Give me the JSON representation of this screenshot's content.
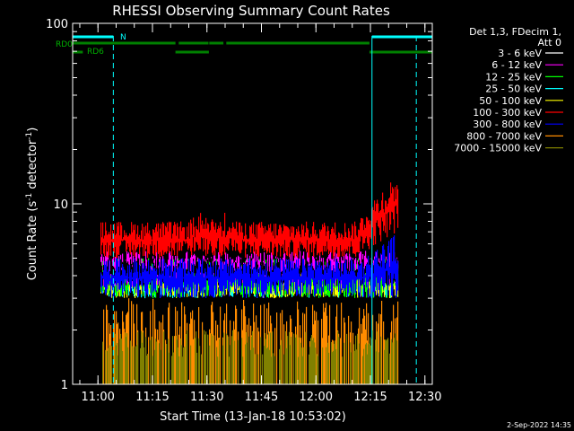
{
  "chart_data": {
    "type": "line",
    "title": "RHESSI Observing Summary Count Rates",
    "xlabel": "Start Time (13-Jan-18 10:53:02)",
    "ylabel_main": "Count Rate (s",
    "ylabel_sup1": "-1",
    "ylabel_mid": " detector",
    "ylabel_sup2": "-1",
    "ylabel_end": ")",
    "yscale": "log",
    "ylim": [
      1,
      100
    ],
    "y_ticks": [
      {
        "value": 1,
        "label": "1"
      },
      {
        "value": 10,
        "label": "10"
      },
      {
        "value": 100,
        "label": "100"
      }
    ],
    "xlim_minutes": [
      0,
      99
    ],
    "x_ticks": [
      {
        "minute": 6.97,
        "label": "11:00"
      },
      {
        "minute": 21.97,
        "label": "11:15"
      },
      {
        "minute": 36.97,
        "label": "11:30"
      },
      {
        "minute": 51.97,
        "label": "11:45"
      },
      {
        "minute": 66.97,
        "label": "12:00"
      },
      {
        "minute": 81.97,
        "label": "12:15"
      },
      {
        "minute": 96.97,
        "label": "12:30"
      }
    ],
    "data_start_minute": 7.8,
    "data_end_minute": 89.7,
    "legend_header": [
      "Det 1,3, FDecim 1,",
      "Att 0"
    ],
    "series": [
      {
        "name": "3 - 6 keV",
        "color": "#000000",
        "level": [
          3.5,
          5.0
        ]
      },
      {
        "name": "6 - 12 keV",
        "color": "#ff00ff",
        "level": [
          3.5,
          5.5
        ]
      },
      {
        "name": "12 - 25 keV",
        "color": "#00ff00",
        "level": [
          3.0,
          5.0
        ]
      },
      {
        "name": "25 - 50 keV",
        "color": "#00ffff",
        "level": [
          3.0,
          4.5
        ]
      },
      {
        "name": "50 - 100 keV",
        "color": "#ffff00",
        "level": [
          3.0,
          4.5
        ]
      },
      {
        "name": "100 - 300 keV",
        "color": "#ff0000",
        "level": [
          5.0,
          8.0
        ]
      },
      {
        "name": "300 - 800 keV",
        "color": "#0000ff",
        "level": [
          3.0,
          5.0
        ]
      },
      {
        "name": "800 - 7000 keV",
        "color": "#ff8c00",
        "level": [
          1.0,
          3.0
        ]
      },
      {
        "name": "7000 - 15000 keV",
        "color": "#808000",
        "level": [
          1.0,
          2.0
        ]
      }
    ],
    "flags": [
      {
        "name": "RD0",
        "color": "#008000",
        "segments": [
          [
            0,
            28.3
          ],
          [
            29.2,
            37.4
          ],
          [
            37.6,
            41.5
          ],
          [
            42.3,
            81.7
          ]
        ]
      },
      {
        "name": "RD6",
        "color": "#008000",
        "segments": [
          [
            0,
            2.8
          ],
          [
            28.3,
            37.5
          ],
          [
            81.7,
            99
          ]
        ]
      },
      {
        "name": "N",
        "color": "#00ffff",
        "segments": [
          [
            0,
            11.2
          ],
          [
            82.4,
            99
          ]
        ]
      }
    ],
    "vlines": [
      {
        "minute": 0,
        "style": "solid",
        "color": "#00ffff"
      },
      {
        "minute": 11.2,
        "style": "dashed",
        "color": "#00ffff"
      },
      {
        "minute": 82.4,
        "style": "solid",
        "color": "#00ffff"
      },
      {
        "minute": 94.6,
        "style": "dashed",
        "color": "#00ffff"
      }
    ]
  },
  "footer_date": "2-Sep-2022 14:35"
}
